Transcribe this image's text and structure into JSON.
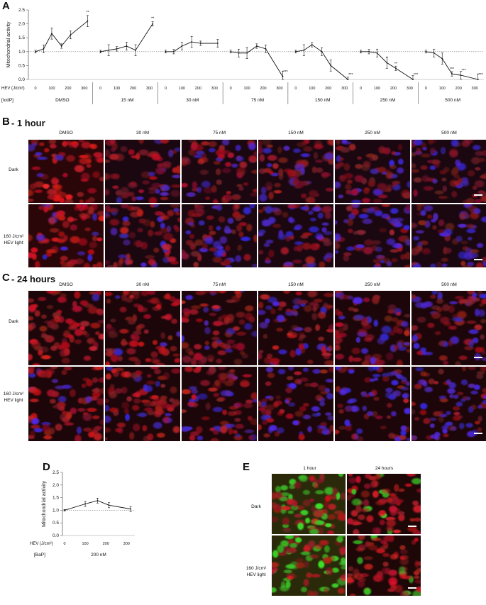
{
  "panel_a": {
    "letter": "A",
    "ylabel": "Mitochondrial activity",
    "y_ticks": [
      "0.0",
      "0.5",
      "1.0",
      "1.5",
      "2.0",
      "2.5"
    ],
    "hev_label": "HEV (J/cm²)",
    "conc_label": "[IodP]",
    "x_ticks": [
      "0",
      "100",
      "200",
      "300"
    ],
    "groups": [
      "DMSO",
      "15 nM",
      "30 nM",
      "75 nM",
      "150 nM",
      "250 nM",
      "500 nM"
    ]
  },
  "panel_b": {
    "letter": "B",
    "title": "- 1 hour",
    "columns": [
      "DMSO",
      "30 nM",
      "75 nM",
      "150 nM",
      "250 nM",
      "500 nM"
    ],
    "row_dark": "Dark",
    "row_light_1": "160 J/cm²",
    "row_light_2": "HEV light"
  },
  "panel_c": {
    "letter": "C",
    "title": "- 24 hours",
    "columns": [
      "DMSO",
      "30 nM",
      "75 nM",
      "150 nM",
      "250 nM",
      "500 nM"
    ],
    "row_dark": "Dark",
    "row_light_1": "160 J/cm²",
    "row_light_2": "HEV light"
  },
  "panel_d": {
    "letter": "D",
    "ylabel": "Mitochondrial activity",
    "y_ticks": [
      "0.0",
      "0.5",
      "1.0",
      "1.5",
      "2.0",
      "2.5"
    ],
    "hev_label": "HEV (J/cm²)",
    "x_ticks": [
      "0",
      "100",
      "200",
      "300"
    ],
    "conc_label": "[BaP]",
    "group": "200 nM"
  },
  "panel_e": {
    "letter": "E",
    "columns": [
      "1 hour",
      "24 hours"
    ],
    "row_dark": "Dark",
    "row_light_1": "160 J/cm²",
    "row_light_2": "HEV light"
  },
  "chart_data": [
    {
      "type": "line",
      "panel": "A",
      "ylabel": "Mitochondrial activity",
      "ylim": [
        0,
        2.5
      ],
      "reference_line": 1.0,
      "x": [
        0,
        50,
        100,
        160,
        215,
        320
      ],
      "series": [
        {
          "group": "DMSO",
          "values": [
            1.0,
            1.1,
            1.65,
            1.2,
            1.6,
            2.1
          ],
          "sig": [
            "",
            "",
            "",
            "",
            "",
            "**"
          ]
        },
        {
          "group": "15 nM",
          "values": [
            1.0,
            1.05,
            1.1,
            1.2,
            1.05,
            2.0
          ],
          "sig": [
            "",
            "",
            "",
            "",
            "",
            "**"
          ]
        },
        {
          "group": "30 nM",
          "values": [
            1.0,
            1.0,
            1.2,
            1.35,
            1.3,
            1.3
          ],
          "sig": [
            "",
            "",
            "",
            "",
            "",
            ""
          ]
        },
        {
          "group": "75 nM",
          "values": [
            1.0,
            0.95,
            0.95,
            1.2,
            1.1,
            0.1
          ],
          "sig": [
            "",
            "",
            "",
            "",
            "",
            "***"
          ]
        },
        {
          "group": "150 nM",
          "values": [
            1.0,
            1.05,
            1.25,
            1.0,
            0.5,
            0.0
          ],
          "sig": [
            "",
            "",
            "",
            "",
            "",
            "***"
          ]
        },
        {
          "group": "250 nM",
          "values": [
            1.0,
            1.0,
            0.95,
            0.6,
            0.4,
            0.0
          ],
          "sig": [
            "",
            "",
            "",
            "*",
            "**",
            "***"
          ]
        },
        {
          "group": "500 nM",
          "values": [
            1.0,
            0.95,
            0.75,
            0.2,
            0.15,
            0.0
          ],
          "sig": [
            "",
            "",
            "",
            "***",
            "***",
            "***"
          ]
        }
      ]
    },
    {
      "type": "line",
      "panel": "D",
      "ylabel": "Mitochondrial activity",
      "ylim": [
        0,
        2.5
      ],
      "reference_line": 1.0,
      "x": [
        0,
        100,
        160,
        215,
        320
      ],
      "series": [
        {
          "group": "200 nM",
          "values": [
            1.0,
            1.25,
            1.38,
            1.2,
            1.05
          ]
        }
      ]
    }
  ]
}
